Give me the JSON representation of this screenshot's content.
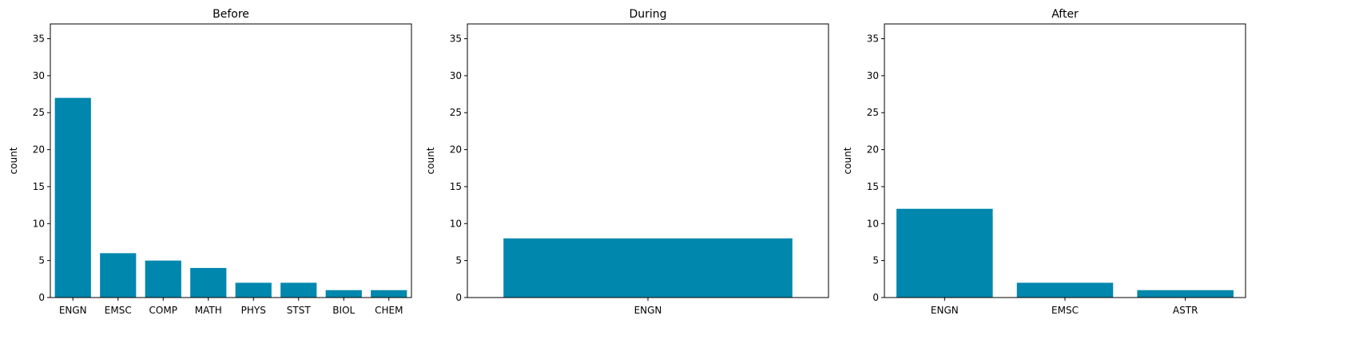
{
  "chart_data": [
    {
      "type": "bar",
      "title": "Before",
      "xlabel": "",
      "ylabel": "count",
      "ylim": [
        0,
        37
      ],
      "yticks": [
        0,
        5,
        10,
        15,
        20,
        25,
        30,
        35
      ],
      "categories": [
        "ENGN",
        "EMSC",
        "COMP",
        "MATH",
        "PHYS",
        "STST",
        "BIOL",
        "CHEM"
      ],
      "values": [
        27,
        6,
        5,
        4,
        2,
        2,
        1,
        1
      ],
      "color": "#0087ad",
      "grid": false
    },
    {
      "type": "bar",
      "title": "During",
      "xlabel": "",
      "ylabel": "count",
      "ylim": [
        0,
        37
      ],
      "yticks": [
        0,
        5,
        10,
        15,
        20,
        25,
        30,
        35
      ],
      "categories": [
        "ENGN"
      ],
      "values": [
        8
      ],
      "color": "#0087ad",
      "grid": false
    },
    {
      "type": "bar",
      "title": "After",
      "xlabel": "",
      "ylabel": "count",
      "ylim": [
        0,
        37
      ],
      "yticks": [
        0,
        5,
        10,
        15,
        20,
        25,
        30,
        35
      ],
      "categories": [
        "ENGN",
        "EMSC",
        "ASTR"
      ],
      "values": [
        12,
        2,
        1
      ],
      "color": "#0087ad",
      "grid": false
    }
  ]
}
